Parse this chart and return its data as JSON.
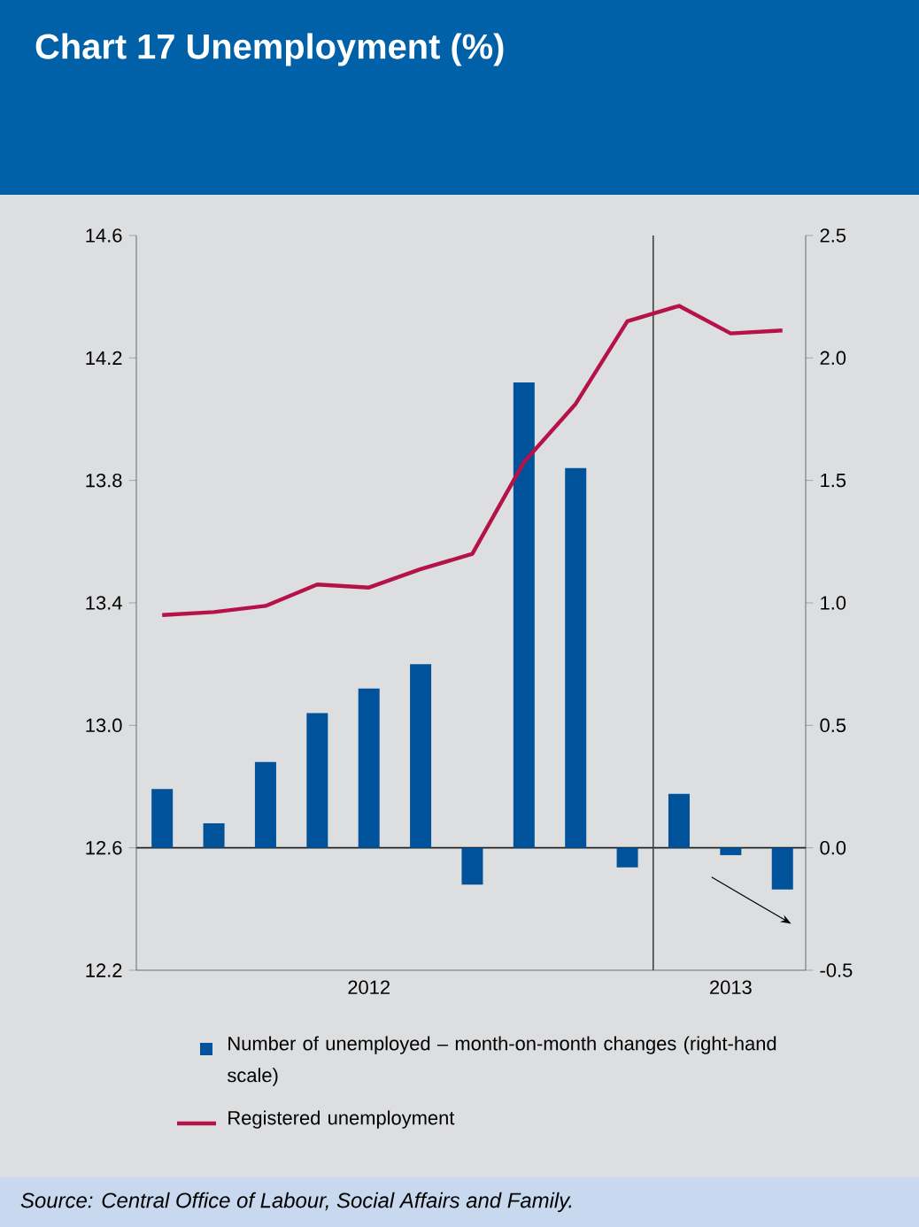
{
  "chart_data": {
    "type": "bar",
    "title": "Chart 17 Unemployment (%)",
    "categories": [
      null,
      null,
      null,
      null,
      "2012",
      null,
      null,
      null,
      null,
      null,
      null,
      "2013",
      null
    ],
    "ylim": [
      12.2,
      14.6
    ],
    "yticks": [
      12.2,
      12.6,
      {
        "value": 13.0,
        "label": "13.0"
      },
      13.4,
      13.8,
      14.2,
      14.6
    ],
    "y2lim": [
      -0.5,
      2.5
    ],
    "y2ticks": [
      -0.5,
      {
        "value": 0,
        "label": "0.0"
      },
      0.5,
      {
        "value": 1,
        "label": "1.0"
      },
      1.5,
      {
        "value": 2,
        "label": "2.0"
      },
      2.5
    ],
    "series": [
      {
        "name": "Number of unemployed – month-on-month changes (right-hand scale)",
        "axis": "y2",
        "color": "#00529b",
        "values": [
          0.24,
          0.1,
          0.35,
          0.55,
          0.65,
          0.75,
          -0.15,
          1.9,
          1.55,
          -0.08,
          0.22,
          -0.03,
          -0.17
        ]
      },
      {
        "name": "Registered unemployment",
        "type": "line",
        "color": "#b5124a",
        "values": [
          13.36,
          13.37,
          13.39,
          13.46,
          13.45,
          13.51,
          13.56,
          13.86,
          14.05,
          14.32,
          14.37,
          14.28,
          14.29
        ]
      }
    ],
    "ref_lines": [
      {
        "axis": "y2",
        "value": 0,
        "color": "#222222"
      }
    ],
    "legend": "bottom",
    "grid": false,
    "annotations": [
      "Source: Central Office of Labour, Social Affairs and Family."
    ]
  }
}
